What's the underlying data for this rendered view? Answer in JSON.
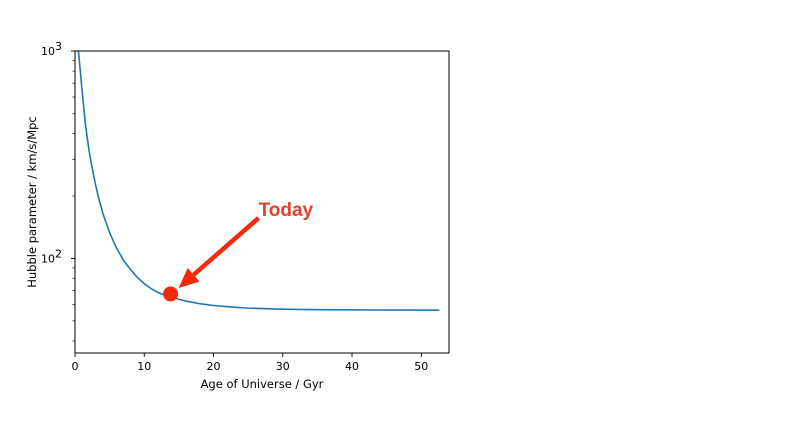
{
  "chart_data": {
    "type": "line",
    "xlabel": "Age of Universe / Gyr",
    "ylabel": "Hubble parameter  /  km/s/Mpc",
    "xlim": [
      0,
      54
    ],
    "ylim": [
      35,
      1000
    ],
    "yscale": "log",
    "grid": false,
    "x_ticks": [
      0,
      10,
      20,
      30,
      40,
      50
    ],
    "x_tick_labels": [
      "0",
      "10",
      "20",
      "30",
      "40",
      "50"
    ],
    "y_ticks": [
      100,
      1000
    ],
    "y_tick_bases": [
      "10",
      "10"
    ],
    "y_tick_exponents": [
      "2",
      "3"
    ],
    "series": [
      {
        "color": "#1f77b4",
        "x": [
          0.5,
          1,
          1.5,
          2,
          2.5,
          3,
          3.5,
          4,
          5,
          6,
          7,
          8,
          9,
          10,
          11,
          12,
          13,
          14,
          15,
          16,
          18,
          20,
          22,
          25,
          30,
          35,
          40,
          45,
          50,
          52.6
        ],
        "y": [
          1000,
          655,
          445,
          335,
          270,
          224,
          191,
          166,
          133,
          112,
          98,
          88.5,
          81,
          75.5,
          71.5,
          68.5,
          66.5,
          65,
          63.5,
          62.3,
          60.5,
          59.3,
          58.5,
          57.6,
          56.9,
          56.6,
          56.5,
          56.4,
          56.4,
          56.3
        ]
      }
    ],
    "highlight_point": {
      "x": 13.8,
      "y": 67.4,
      "color": "#f5280a"
    },
    "annotation": {
      "text": "Today",
      "color": "#e8402a",
      "arrow_color": "#f5280a"
    }
  }
}
